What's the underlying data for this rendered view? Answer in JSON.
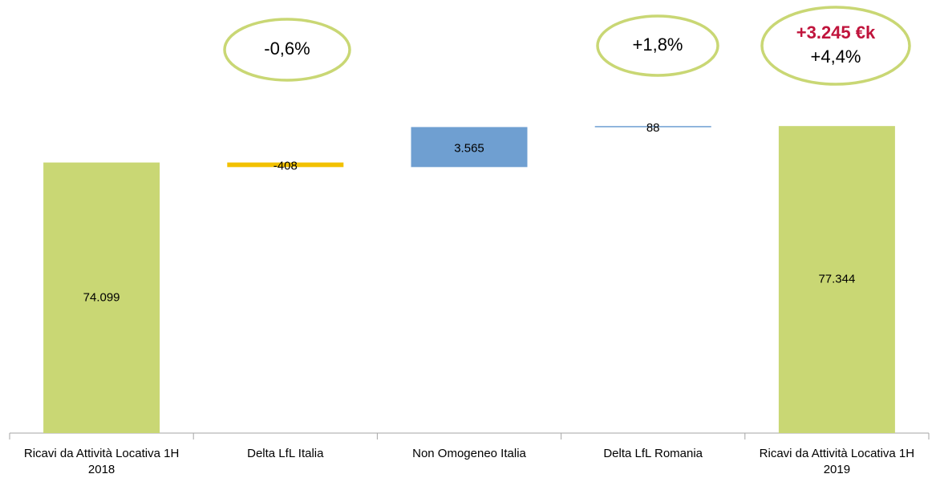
{
  "chart_data": {
    "type": "waterfall",
    "categories": [
      "Ricavi da Attività Locativa 1H 2018",
      "Delta LfL Italia",
      "Non Omogeneo Italia",
      "Delta LfL Romania",
      "Ricavi da Attività Locativa 1H 2019"
    ],
    "values": [
      74099,
      -408,
      3565,
      88,
      77344
    ],
    "value_labels": [
      "74.099",
      "-408",
      "3.565",
      "88",
      "77.344"
    ],
    "totals": [
      true,
      false,
      false,
      false,
      true
    ],
    "colors": [
      "#c9d774",
      "#f2c100",
      "#6f9fd1",
      "#6f9fd1",
      "#c9d774"
    ],
    "ylim": [
      50000,
      80000
    ],
    "annotations": [
      {
        "lines": [
          "-0,6%"
        ]
      },
      {
        "lines": [
          "+1,8%"
        ]
      },
      {
        "lines": [
          "+3.245 €k",
          "+4,4%"
        ]
      }
    ]
  }
}
